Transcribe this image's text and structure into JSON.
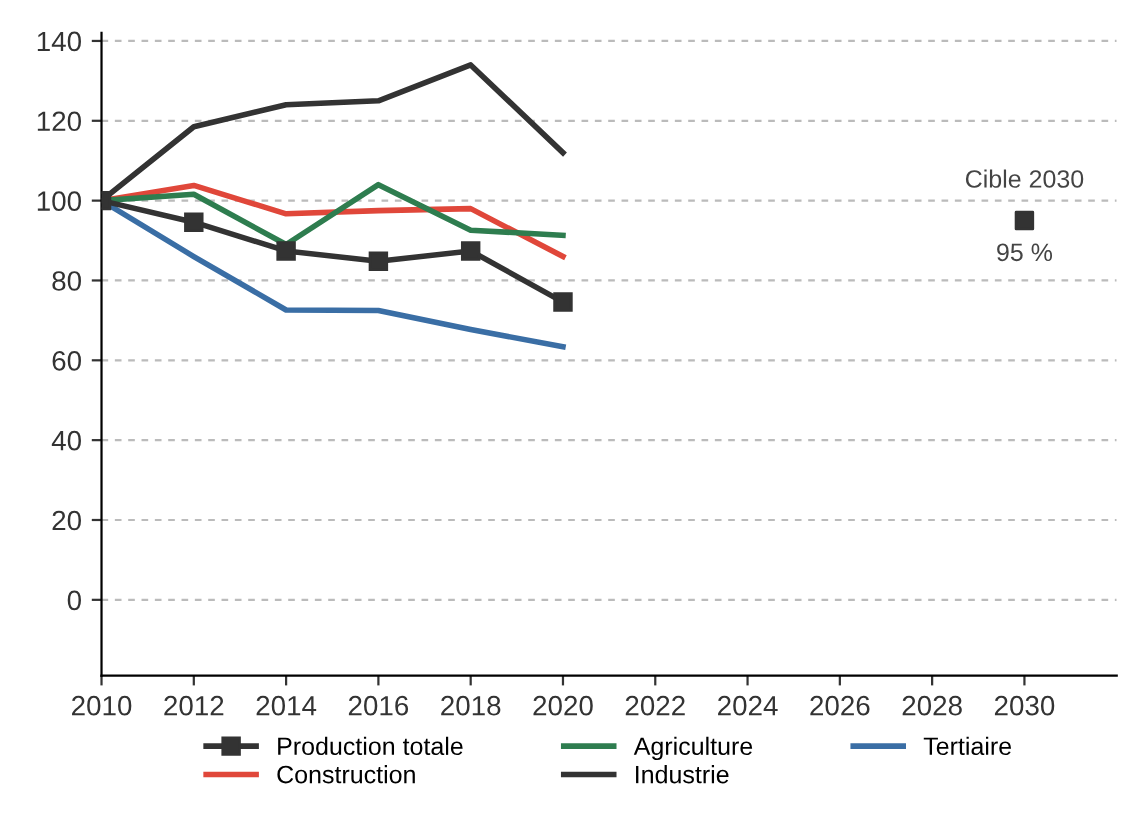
{
  "chart_data": {
    "type": "line",
    "x": [
      2010,
      2012,
      2014,
      2016,
      2018,
      2020
    ],
    "series": [
      {
        "name": "Production totale",
        "color": "#333333",
        "marker": "square",
        "values": [
          100,
          94.6,
          87.4,
          84.8,
          87.4,
          74.6
        ]
      },
      {
        "name": "Construction",
        "color": "#e0473a",
        "marker": "none",
        "values": [
          100,
          103.8,
          96.7,
          97.5,
          98,
          86
        ]
      },
      {
        "name": "Agriculture",
        "color": "#2e7d4f",
        "marker": "none",
        "values": [
          100,
          101.6,
          89,
          104,
          92.6,
          91.3
        ]
      },
      {
        "name": "Industrie",
        "color": "#333333",
        "marker": "none",
        "values": [
          100,
          118.5,
          124,
          125,
          134,
          112
        ]
      },
      {
        "name": "Tertiaire",
        "color": "#3a6ea5",
        "marker": "none",
        "values": [
          100,
          86,
          72.6,
          72.5,
          67.7,
          63.4
        ]
      },
      {
        "type": "scatter",
        "color": "#333333",
        "marker": "square",
        "x": [
          2030
        ],
        "values": [
          95
        ],
        "value_labels": [
          "95 %"
        ]
      }
    ],
    "annotations": [
      {
        "text": "Cible 2030",
        "x": 2030,
        "y": 95
      }
    ],
    "xlim": [
      2010,
      2032
    ],
    "xticks": [
      2010,
      2012,
      2014,
      2016,
      2018,
      2020,
      2022,
      2024,
      2026,
      2028,
      2030
    ],
    "ylim": [
      -19,
      142
    ],
    "yticks": [
      0,
      20,
      40,
      60,
      80,
      100,
      120,
      140
    ],
    "grid": "y",
    "legend": "bottom"
  }
}
